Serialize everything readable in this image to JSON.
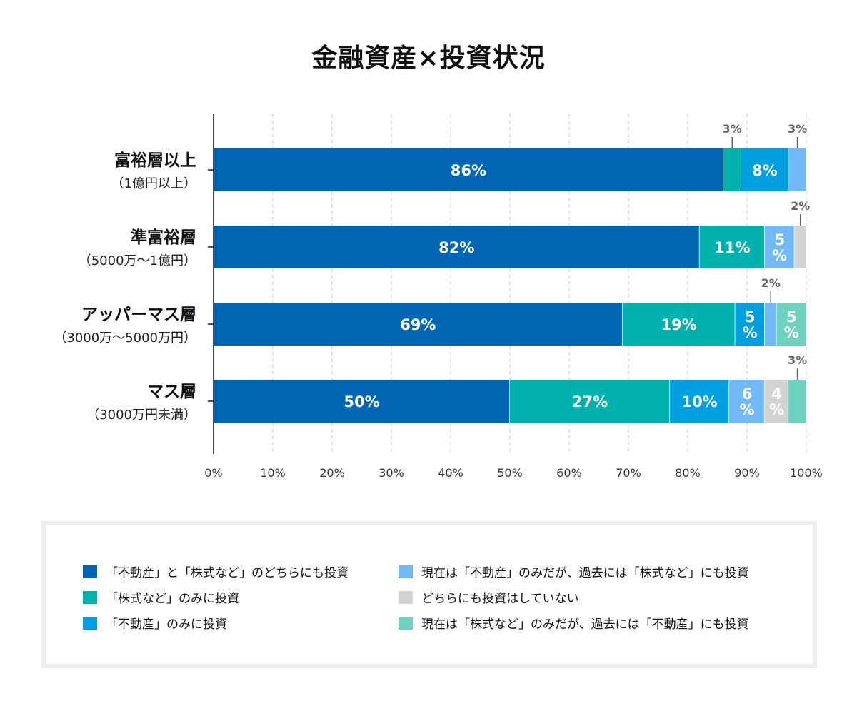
{
  "chart_data": {
    "type": "bar",
    "orientation": "horizontal",
    "stacked": true,
    "title": "金融資産×投資状況",
    "categories": [
      {
        "name": "富裕層以上",
        "sub": "（1億円以上）"
      },
      {
        "name": "準富裕層",
        "sub": "（5000万〜1億円）"
      },
      {
        "name": "アッパーマス層",
        "sub": "（3000万〜5000万円）"
      },
      {
        "name": "マス層",
        "sub": "（3000万円未満）"
      }
    ],
    "series": [
      {
        "name": "「不動産」と「株式など」のどちらにも投資",
        "color": "#0066b3",
        "values": [
          86,
          82,
          69,
          50
        ],
        "labels": [
          "86%",
          "82%",
          "69%",
          "50%"
        ]
      },
      {
        "name": "「株式など」のみに投資",
        "color": "#00b2ab",
        "values": [
          3,
          11,
          19,
          27
        ],
        "labels": [
          "3%",
          "11%",
          "19%",
          "27%"
        ]
      },
      {
        "name": "「不動産」のみに投資",
        "color": "#009fe0",
        "values": [
          8,
          0,
          5,
          10
        ],
        "labels": [
          "8%",
          "",
          "5\n%",
          "10%"
        ]
      },
      {
        "name": "現在は「不動産」のみだが、過去には「株式など」にも投資",
        "color": "#72baf7",
        "values": [
          3,
          5,
          2,
          6
        ],
        "labels": [
          "3%",
          "5\n%",
          "2%",
          "6\n%"
        ]
      },
      {
        "name": "どちらにも投資はしていない",
        "color": "#d3d3d3",
        "values": [
          0,
          2,
          0,
          4
        ],
        "labels": [
          "",
          "2%",
          "",
          "4\n%"
        ]
      },
      {
        "name": "現在は「株式など」のみだが、過去には「不動産」にも投資",
        "color": "#6dd3bf",
        "values": [
          0,
          0,
          5,
          3
        ],
        "labels": [
          "",
          "",
          "5\n%",
          "3%"
        ]
      }
    ],
    "xlim": [
      0,
      100
    ],
    "ticks": [
      "0%",
      "10%",
      "20%",
      "30%",
      "40%",
      "50%",
      "60%",
      "70%",
      "80%",
      "90%",
      "100%"
    ],
    "grid": "vertical dashed",
    "legend_position": "bottom"
  }
}
